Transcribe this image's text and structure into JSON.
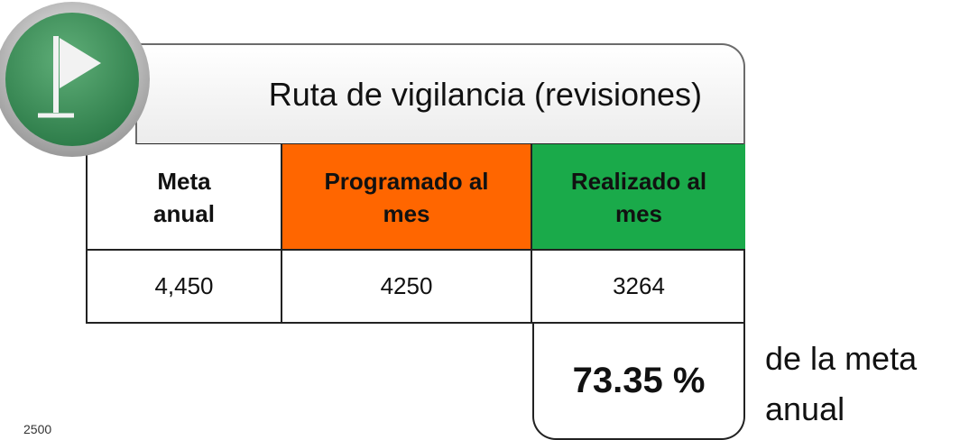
{
  "header": {
    "title": "Ruta de vigilancia (revisiones)"
  },
  "table": {
    "headers": [
      "Meta anual",
      "Programado al mes",
      "Realizado al mes"
    ],
    "rows": [
      [
        "4,450",
        "4250",
        "3264"
      ]
    ]
  },
  "result": {
    "percent": "73.35 %",
    "note": "de la meta anual"
  },
  "footer": {
    "stray": "2500"
  }
}
